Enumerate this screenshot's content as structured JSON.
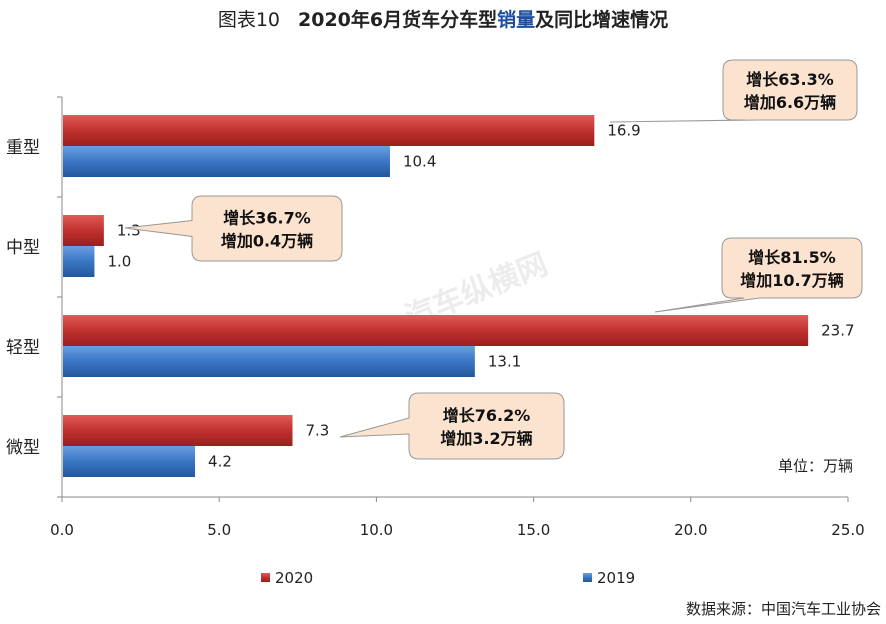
{
  "title": {
    "prefix": "图表10",
    "main_before": "2020年6月货车分车型",
    "highlight": "销量",
    "main_after": "及同比增速情况"
  },
  "colors": {
    "series_2020": "#c0312f",
    "series_2019": "#3a76c4",
    "callout_fill": "#fbe3cf",
    "callout_stroke": "#999999"
  },
  "unit": "单位：万辆",
  "source": "数据来源：中国汽车工业协会",
  "watermark": "汽车纵横网",
  "chart_data": {
    "type": "bar",
    "orientation": "horizontal",
    "categories": [
      "重型",
      "中型",
      "轻型",
      "微型"
    ],
    "series": [
      {
        "name": "2020",
        "values": [
          16.9,
          1.3,
          23.7,
          7.3
        ]
      },
      {
        "name": "2019",
        "values": [
          10.4,
          1.0,
          13.1,
          4.2
        ]
      }
    ],
    "value_labels": {
      "2020": [
        "16.9",
        "1.3",
        "23.7",
        "7.3"
      ],
      "2019": [
        "10.4",
        "1.0",
        "13.1",
        "4.2"
      ]
    },
    "xlim": [
      0,
      25
    ],
    "xticks": [
      "0.0",
      "5.0",
      "10.0",
      "15.0",
      "20.0",
      "25.0"
    ],
    "grid": false,
    "legend_position": "bottom",
    "annotations": [
      {
        "category": "重型",
        "line1": "增长63.3%",
        "line2": "增加6.6万辆"
      },
      {
        "category": "中型",
        "line1": "增长36.7%",
        "line2": "增加0.4万辆"
      },
      {
        "category": "轻型",
        "line1": "增长81.5%",
        "line2": "增加10.7万辆"
      },
      {
        "category": "微型",
        "line1": "增长76.2%",
        "line2": "增加3.2万辆"
      }
    ]
  }
}
